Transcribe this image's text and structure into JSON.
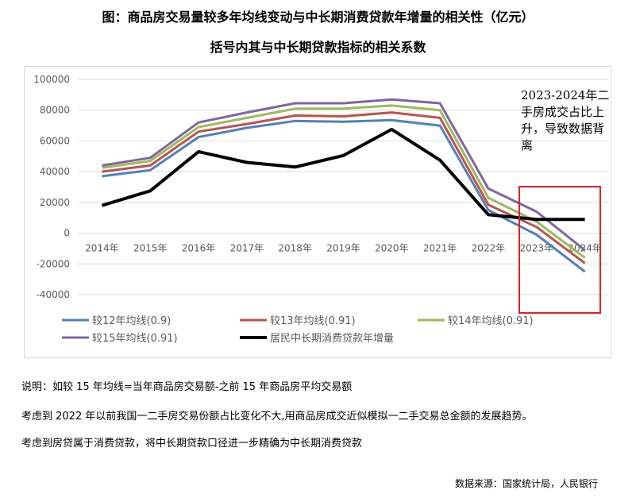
{
  "title": "图：商品房交易量较多年均线变动与中长期消费贷款年增量的相关性（亿元）",
  "subtitle": "括号内其与中长期贷款指标的相关系数",
  "chart_data": {
    "type": "line",
    "x": [
      "2014年",
      "2015年",
      "2016年",
      "2017年",
      "2018年",
      "2019年",
      "2020年",
      "2021年",
      "2022年",
      "2023年",
      "2024年"
    ],
    "ylim": [
      -40000,
      100000
    ],
    "yticks": [
      "-40000",
      "-20000",
      "0",
      "20000",
      "40000",
      "60000",
      "80000",
      "100000"
    ],
    "grid": true,
    "legend_position": "bottom",
    "series": [
      {
        "name": "较12年均线(0.9)",
        "color": "#4f81bd",
        "values": [
          37000,
          41000,
          62500,
          68500,
          73000,
          72500,
          73500,
          70000,
          15000,
          -1000,
          -25000
        ]
      },
      {
        "name": "较13年均线(0.91)",
        "color": "#c0504d",
        "values": [
          40000,
          44000,
          66000,
          71000,
          76500,
          76000,
          78500,
          75000,
          18500,
          4000,
          -19500
        ]
      },
      {
        "name": "较14年均线(0.91)",
        "color": "#9bbb59",
        "values": [
          42500,
          47000,
          69000,
          75000,
          81000,
          81000,
          83000,
          80000,
          23000,
          7500,
          -16000
        ]
      },
      {
        "name": "较15年均线(0.91)",
        "color": "#8064a2",
        "values": [
          44000,
          49000,
          72000,
          78500,
          84500,
          84500,
          87000,
          84500,
          29000,
          14000,
          -11000
        ]
      },
      {
        "name": "居民中长期消费贷款年增量",
        "color": "#000000",
        "values": [
          18000,
          27500,
          53000,
          46000,
          43000,
          50500,
          67500,
          47500,
          12000,
          9000,
          9000
        ]
      }
    ]
  },
  "annotation": "2023-2024年二手房成交占比上升，导致数据背离",
  "notes": [
    "说明：如较 15 年均线=当年商品房交易额-之前 15 年商品房平均交易额",
    "考虑到 2022 年以前我国一二手房交易份额占比变化不大,用商品房成交近似模拟一二手交易总金额的发展趋势。",
    "考虑到房贷属于消费贷款，将中长期贷款口径进一步精确为中长期消费贷款"
  ],
  "source": "数据来源：国家统计局，人民银行"
}
